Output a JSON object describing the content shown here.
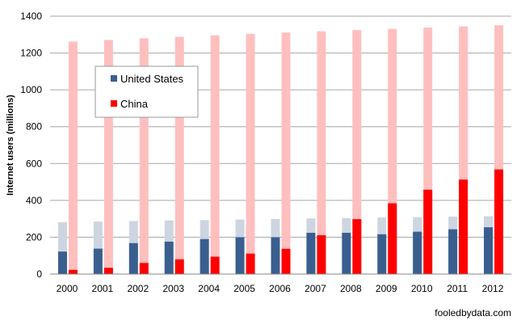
{
  "chart_data": {
    "type": "bar",
    "title": "",
    "xlabel": "",
    "ylabel": "Internet users (millions)",
    "ylim": [
      0,
      1400
    ],
    "yticks": [
      0,
      200,
      400,
      600,
      800,
      1000,
      1200,
      1400
    ],
    "grid": true,
    "legend_position": "top-left",
    "categories": [
      "2000",
      "2001",
      "2002",
      "2003",
      "2004",
      "2005",
      "2006",
      "2007",
      "2008",
      "2009",
      "2010",
      "2011",
      "2012"
    ],
    "series": [
      {
        "name": "United States",
        "color": "#3A5F8F",
        "population_color": "#CDD5E0",
        "values": [
          122,
          138,
          168,
          176,
          190,
          200,
          200,
          224,
          224,
          216,
          230,
          243,
          254
        ],
        "population": [
          282,
          285,
          288,
          291,
          293,
          296,
          299,
          302,
          304,
          307,
          309,
          312,
          314
        ]
      },
      {
        "name": "China",
        "color": "#FF0000",
        "population_color": "#FFBFBF",
        "values": [
          23,
          34,
          60,
          80,
          94,
          111,
          137,
          211,
          298,
          384,
          458,
          513,
          568
        ],
        "population": [
          1262,
          1271,
          1280,
          1288,
          1296,
          1304,
          1311,
          1318,
          1325,
          1331,
          1338,
          1344,
          1351
        ]
      }
    ],
    "credit": "fooledbydata.com"
  }
}
